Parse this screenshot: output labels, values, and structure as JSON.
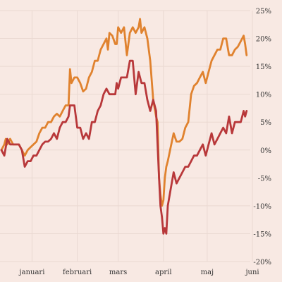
{
  "chart_data": {
    "type": "line",
    "title": "",
    "xlabel": "",
    "ylabel": "",
    "x_range": [
      0,
      166
    ],
    "ylim": [
      -20,
      25
    ],
    "y_ticks": [
      25,
      20,
      15,
      10,
      5,
      0,
      -5,
      -10,
      -15,
      -20
    ],
    "y_tick_labels": [
      "25%",
      "20%",
      "15%",
      "10%",
      "5%",
      "0%",
      "-5%",
      "-10%",
      "-15%",
      "-20%"
    ],
    "x_ticks": [
      {
        "x": 21,
        "label": "januari"
      },
      {
        "x": 52,
        "label": "februari"
      },
      {
        "x": 80,
        "label": "mars"
      },
      {
        "x": 111,
        "label": "april"
      },
      {
        "x": 141,
        "label": "maj"
      },
      {
        "x": 172,
        "label": "juni"
      }
    ],
    "grid": true,
    "grid_axis": "both",
    "legend": "none",
    "series": [
      {
        "color": "#e0822e",
        "points": [
          [
            0,
            0
          ],
          [
            2,
            1
          ],
          [
            3,
            2
          ],
          [
            4,
            1
          ],
          [
            6,
            2
          ],
          [
            8,
            1
          ],
          [
            10,
            1
          ],
          [
            12,
            1
          ],
          [
            14,
            0
          ],
          [
            16,
            -1
          ],
          [
            18,
            0
          ],
          [
            20,
            0.5
          ],
          [
            22,
            1
          ],
          [
            24,
            1.5
          ],
          [
            26,
            3
          ],
          [
            28,
            4
          ],
          [
            30,
            4
          ],
          [
            32,
            5
          ],
          [
            34,
            5
          ],
          [
            36,
            6
          ],
          [
            38,
            6.5
          ],
          [
            40,
            6
          ],
          [
            42,
            7
          ],
          [
            44,
            8
          ],
          [
            46,
            8
          ],
          [
            47,
            14.5
          ],
          [
            48,
            12
          ],
          [
            50,
            13
          ],
          [
            52,
            13
          ],
          [
            54,
            12
          ],
          [
            56,
            10.5
          ],
          [
            58,
            11
          ],
          [
            60,
            13
          ],
          [
            62,
            14
          ],
          [
            64,
            16
          ],
          [
            66,
            16
          ],
          [
            68,
            18
          ],
          [
            70,
            19
          ],
          [
            72,
            20
          ],
          [
            73,
            18
          ],
          [
            74,
            21
          ],
          [
            76,
            20.5
          ],
          [
            78,
            19
          ],
          [
            79,
            19
          ],
          [
            80,
            22
          ],
          [
            82,
            21
          ],
          [
            84,
            22
          ],
          [
            86,
            17
          ],
          [
            88,
            21
          ],
          [
            90,
            22
          ],
          [
            92,
            21
          ],
          [
            94,
            22
          ],
          [
            95,
            23.5
          ],
          [
            96,
            21
          ],
          [
            98,
            22
          ],
          [
            100,
            20
          ],
          [
            102,
            16
          ],
          [
            104,
            9
          ],
          [
            106,
            6
          ],
          [
            107,
            5
          ],
          [
            108,
            -5
          ],
          [
            109,
            -8
          ],
          [
            110,
            -10
          ],
          [
            111,
            -9
          ],
          [
            112,
            -5
          ],
          [
            113,
            -3
          ],
          [
            114,
            -2
          ],
          [
            116,
            0.5
          ],
          [
            118,
            3
          ],
          [
            120,
            1.5
          ],
          [
            122,
            1.5
          ],
          [
            124,
            2
          ],
          [
            126,
            4
          ],
          [
            128,
            5
          ],
          [
            130,
            10
          ],
          [
            132,
            11.5
          ],
          [
            134,
            12
          ],
          [
            136,
            13
          ],
          [
            138,
            14
          ],
          [
            140,
            12
          ],
          [
            142,
            14
          ],
          [
            144,
            16
          ],
          [
            146,
            17
          ],
          [
            148,
            18
          ],
          [
            150,
            18
          ],
          [
            152,
            20
          ],
          [
            154,
            20
          ],
          [
            156,
            17
          ],
          [
            158,
            17
          ],
          [
            160,
            18
          ],
          [
            162,
            18.5
          ],
          [
            164,
            19.5
          ],
          [
            166,
            20.5
          ],
          [
            167,
            19
          ],
          [
            168,
            17
          ]
        ]
      },
      {
        "color": "#b8383a",
        "points": [
          [
            0,
            0
          ],
          [
            2,
            -1
          ],
          [
            4,
            2
          ],
          [
            6,
            1
          ],
          [
            8,
            1
          ],
          [
            10,
            1
          ],
          [
            12,
            1
          ],
          [
            14,
            0
          ],
          [
            16,
            -3
          ],
          [
            18,
            -2
          ],
          [
            20,
            -2
          ],
          [
            22,
            -1
          ],
          [
            24,
            -1
          ],
          [
            26,
            0
          ],
          [
            28,
            1
          ],
          [
            30,
            1.5
          ],
          [
            32,
            1.5
          ],
          [
            34,
            2
          ],
          [
            36,
            3
          ],
          [
            38,
            2
          ],
          [
            40,
            4
          ],
          [
            42,
            5
          ],
          [
            44,
            5
          ],
          [
            46,
            6
          ],
          [
            47,
            8
          ],
          [
            48,
            8
          ],
          [
            50,
            8
          ],
          [
            52,
            4
          ],
          [
            54,
            4
          ],
          [
            56,
            2
          ],
          [
            58,
            3
          ],
          [
            60,
            2
          ],
          [
            62,
            5
          ],
          [
            64,
            5
          ],
          [
            66,
            7
          ],
          [
            68,
            8
          ],
          [
            70,
            10
          ],
          [
            72,
            11
          ],
          [
            74,
            10
          ],
          [
            76,
            10
          ],
          [
            78,
            10
          ],
          [
            79,
            12
          ],
          [
            80,
            11
          ],
          [
            82,
            13
          ],
          [
            84,
            13
          ],
          [
            86,
            13
          ],
          [
            88,
            16
          ],
          [
            90,
            16
          ],
          [
            92,
            10
          ],
          [
            94,
            14
          ],
          [
            96,
            12
          ],
          [
            98,
            12
          ],
          [
            100,
            9
          ],
          [
            102,
            7
          ],
          [
            104,
            9
          ],
          [
            106,
            7
          ],
          [
            108,
            -5
          ],
          [
            109,
            -10
          ],
          [
            110,
            -12
          ],
          [
            111,
            -15
          ],
          [
            112,
            -14
          ],
          [
            113,
            -15
          ],
          [
            114,
            -10
          ],
          [
            116,
            -7
          ],
          [
            118,
            -4
          ],
          [
            120,
            -6
          ],
          [
            122,
            -5
          ],
          [
            124,
            -4
          ],
          [
            126,
            -3
          ],
          [
            128,
            -3
          ],
          [
            130,
            -2
          ],
          [
            132,
            -1
          ],
          [
            134,
            -1
          ],
          [
            136,
            0
          ],
          [
            138,
            1
          ],
          [
            140,
            -1
          ],
          [
            142,
            1
          ],
          [
            144,
            3
          ],
          [
            146,
            1
          ],
          [
            148,
            2
          ],
          [
            150,
            3
          ],
          [
            152,
            4
          ],
          [
            154,
            3
          ],
          [
            156,
            6
          ],
          [
            158,
            3
          ],
          [
            160,
            5
          ],
          [
            162,
            5
          ],
          [
            164,
            5
          ],
          [
            166,
            7
          ],
          [
            167,
            6
          ],
          [
            168,
            7
          ]
        ]
      }
    ]
  }
}
